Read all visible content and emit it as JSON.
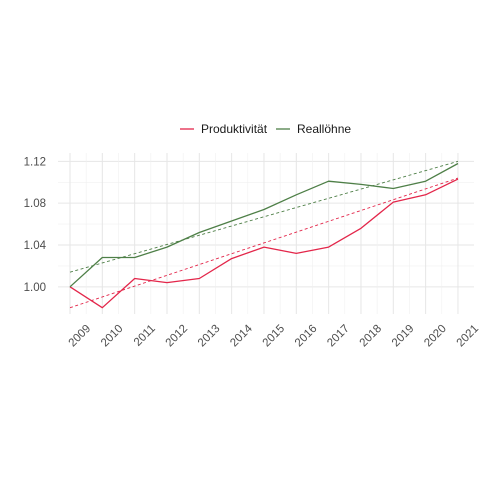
{
  "chart_data": {
    "type": "line",
    "x": [
      "2009",
      "2010",
      "2011",
      "2012",
      "2013",
      "2014",
      "2015",
      "2016",
      "2017",
      "2018",
      "2019",
      "2020",
      "2021"
    ],
    "series": [
      {
        "name": "Produktivität",
        "color": "#e3264a",
        "values": [
          1.0,
          0.98,
          1.008,
          1.004,
          1.008,
          1.027,
          1.038,
          1.032,
          1.038,
          1.056,
          1.081,
          1.088,
          1.103
        ],
        "trend": [
          0.98,
          1.104
        ]
      },
      {
        "name": "Reallöhne",
        "color": "#4e7f47",
        "values": [
          1.0,
          1.028,
          1.028,
          1.038,
          1.052,
          1.063,
          1.074,
          1.088,
          1.101,
          1.098,
          1.094,
          1.101,
          1.118
        ],
        "trend": [
          1.014,
          1.12
        ]
      }
    ],
    "yticks": [
      1.0,
      1.04,
      1.08,
      1.12
    ],
    "ylim": [
      0.974,
      1.128
    ],
    "grid": true,
    "legend_position": "top",
    "trendline_style": "dashed"
  }
}
